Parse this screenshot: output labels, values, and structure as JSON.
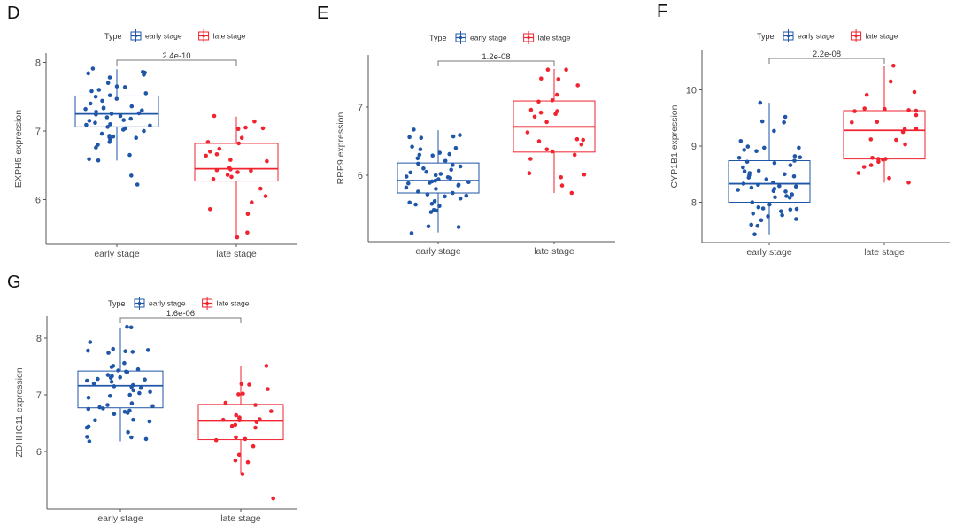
{
  "legend": {
    "title": "Type",
    "items": [
      {
        "label": "early stage",
        "color": "#1f56a8"
      },
      {
        "label": "late stage",
        "color": "#f0232f"
      }
    ]
  },
  "chart_data": [
    {
      "panel": "D",
      "type": "box",
      "ylabel": "EXPH5 expression",
      "xlabel": "",
      "categories": [
        "early stage",
        "late stage"
      ],
      "yticks": [
        6,
        7,
        8
      ],
      "ylim": [
        5.35,
        8.13
      ],
      "pvalue": "2.4e-10",
      "series": [
        {
          "name": "early stage",
          "q1": 7.06,
          "median": 7.25,
          "q3": 7.51,
          "whisker_low": 6.57,
          "whisker_high": 7.9,
          "points": [
            7.86,
            7.85,
            7.84,
            7.78,
            7.82,
            7.91,
            7.7,
            7.65,
            7.64,
            7.6,
            7.58,
            7.55,
            7.52,
            7.5,
            7.47,
            7.44,
            7.4,
            7.36,
            7.34,
            7.33,
            7.32,
            7.3,
            7.28,
            7.26,
            7.25,
            7.24,
            7.22,
            7.2,
            7.18,
            7.16,
            7.15,
            7.12,
            7.1,
            7.09,
            7.08,
            7.06,
            7.04,
            7.02,
            7.0,
            6.96,
            6.93,
            6.92,
            6.91,
            6.9,
            6.88,
            6.84,
            6.8,
            6.76,
            6.65,
            6.59,
            6.57,
            6.35,
            6.22
          ],
          "outliers": [
            6.35,
            6.22
          ]
        },
        {
          "name": "late stage",
          "q1": 6.27,
          "median": 6.45,
          "q3": 6.82,
          "whisker_low": 5.45,
          "whisker_high": 7.21,
          "points": [
            7.22,
            7.14,
            7.05,
            7.04,
            7.03,
            6.9,
            6.84,
            6.82,
            6.74,
            6.7,
            6.66,
            6.64,
            6.58,
            6.56,
            6.46,
            6.44,
            6.43,
            6.42,
            6.4,
            6.36,
            6.33,
            6.3,
            6.16,
            6.05,
            5.96,
            5.86,
            5.79,
            5.52,
            5.45
          ],
          "outliers": []
        }
      ]
    },
    {
      "panel": "E",
      "type": "box",
      "ylabel": "RRP9 expression",
      "xlabel": "",
      "categories": [
        "early stage",
        "late stage"
      ],
      "yticks": [
        6,
        7
      ],
      "ylim": [
        5.03,
        7.77
      ],
      "pvalue": "1.2e-08",
      "series": [
        {
          "name": "early stage",
          "q1": 5.74,
          "median": 5.92,
          "q3": 6.18,
          "whisker_low": 5.16,
          "whisker_high": 6.66,
          "points": [
            6.67,
            6.59,
            6.57,
            6.56,
            6.55,
            6.42,
            6.4,
            6.38,
            6.33,
            6.31,
            6.3,
            6.29,
            6.25,
            6.21,
            6.17,
            6.15,
            6.13,
            6.1,
            6.08,
            6.05,
            6.04,
            6.02,
            6.0,
            5.98,
            5.97,
            5.96,
            5.94,
            5.92,
            5.91,
            5.9,
            5.89,
            5.88,
            5.86,
            5.85,
            5.82,
            5.8,
            5.76,
            5.74,
            5.72,
            5.7,
            5.69,
            5.66,
            5.62,
            5.6,
            5.58,
            5.57,
            5.55,
            5.49,
            5.48,
            5.46,
            5.25,
            5.24,
            5.15
          ],
          "outliers": []
        },
        {
          "name": "late stage",
          "q1": 6.34,
          "median": 6.71,
          "q3": 7.09,
          "whisker_low": 5.74,
          "whisker_high": 7.56,
          "points": [
            7.55,
            7.55,
            7.42,
            7.41,
            7.32,
            7.18,
            7.1,
            7.08,
            6.96,
            6.94,
            6.92,
            6.9,
            6.86,
            6.78,
            6.63,
            6.53,
            6.52,
            6.5,
            6.45,
            6.38,
            6.35,
            6.3,
            6.24,
            6.03,
            6.01,
            5.97,
            5.85,
            5.74
          ],
          "outliers": []
        }
      ]
    },
    {
      "panel": "F",
      "type": "box",
      "ylabel": "CYP1B1 expression",
      "xlabel": "",
      "categories": [
        "early stage",
        "late stage"
      ],
      "yticks": [
        8,
        9,
        10
      ],
      "ylim": [
        7.29,
        10.7
      ],
      "pvalue": "2.2e-08",
      "series": [
        {
          "name": "early stage",
          "q1": 8.0,
          "median": 8.33,
          "q3": 8.74,
          "whisker_low": 7.43,
          "whisker_high": 9.77,
          "points": [
            9.77,
            9.52,
            9.44,
            9.42,
            9.27,
            9.09,
            8.99,
            8.97,
            8.97,
            8.93,
            8.91,
            8.82,
            8.8,
            8.79,
            8.74,
            8.72,
            8.7,
            8.66,
            8.62,
            8.56,
            8.55,
            8.52,
            8.5,
            8.48,
            8.46,
            8.44,
            8.41,
            8.35,
            8.33,
            8.31,
            8.29,
            8.28,
            8.26,
            8.24,
            8.22,
            8.2,
            8.19,
            8.14,
            8.11,
            8.09,
            8.08,
            8.0,
            7.96,
            7.91,
            7.89,
            7.88,
            7.87,
            7.84,
            7.8,
            7.77,
            7.75,
            7.7,
            7.68,
            7.6,
            7.58,
            7.43
          ],
          "outliers": []
        },
        {
          "name": "late stage",
          "q1": 8.77,
          "median": 9.28,
          "q3": 9.63,
          "whisker_low": 8.35,
          "whisker_high": 10.42,
          "points": [
            10.43,
            10.15,
            9.96,
            9.91,
            9.67,
            9.66,
            9.64,
            9.63,
            9.62,
            9.55,
            9.43,
            9.42,
            9.31,
            9.3,
            9.25,
            9.12,
            9.11,
            9.03,
            8.79,
            8.77,
            8.77,
            8.76,
            8.72,
            8.66,
            8.63,
            8.52,
            8.43,
            8.35
          ],
          "outliers": []
        }
      ]
    },
    {
      "panel": "G",
      "type": "box",
      "ylabel": "ZDHHC11 expression",
      "xlabel": "",
      "categories": [
        "early stage",
        "late stage"
      ],
      "yticks": [
        6,
        7,
        8
      ],
      "ylim": [
        4.98,
        8.39
      ],
      "pvalue": "1.6e-06",
      "series": [
        {
          "name": "early stage",
          "q1": 6.77,
          "median": 7.16,
          "q3": 7.42,
          "whisker_low": 6.18,
          "whisker_high": 8.19,
          "points": [
            8.2,
            8.19,
            7.93,
            7.81,
            7.79,
            7.78,
            7.77,
            7.76,
            7.74,
            7.56,
            7.51,
            7.49,
            7.45,
            7.43,
            7.41,
            7.4,
            7.35,
            7.33,
            7.31,
            7.3,
            7.28,
            7.27,
            7.25,
            7.23,
            7.2,
            7.17,
            7.15,
            7.14,
            7.12,
            7.08,
            7.05,
            7.03,
            7.0,
            6.98,
            6.95,
            6.85,
            6.82,
            6.8,
            6.78,
            6.76,
            6.75,
            6.72,
            6.7,
            6.68,
            6.66,
            6.56,
            6.55,
            6.53,
            6.44,
            6.42,
            6.34,
            6.26,
            6.25,
            6.22,
            6.18
          ],
          "outliers": []
        },
        {
          "name": "late stage",
          "q1": 6.21,
          "median": 6.54,
          "q3": 6.83,
          "whisker_low": 5.6,
          "whisker_high": 7.5,
          "points": [
            7.51,
            7.19,
            7.18,
            7.1,
            7.02,
            7.01,
            6.86,
            6.82,
            6.71,
            6.64,
            6.6,
            6.59,
            6.57,
            6.56,
            6.55,
            6.52,
            6.47,
            6.45,
            6.42,
            6.25,
            6.22,
            6.2,
            6.09,
            5.94,
            5.84,
            5.81,
            5.6,
            5.17
          ],
          "outliers": [
            5.17
          ]
        }
      ]
    }
  ]
}
